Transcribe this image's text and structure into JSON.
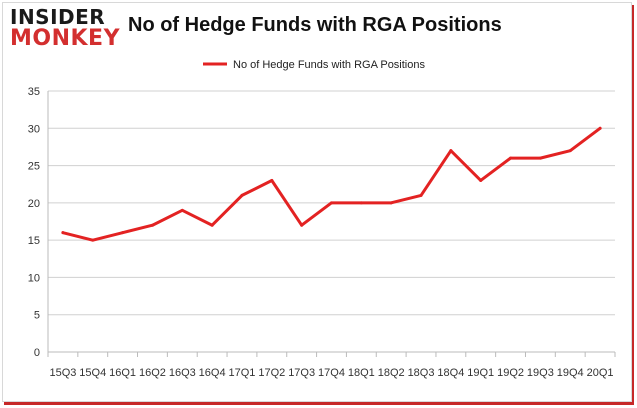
{
  "logo": {
    "top": "INSIDER",
    "bottom": "MONKEY"
  },
  "chart_data": {
    "type": "line",
    "title": "No of Hedge Funds with RGA Positions",
    "xlabel": "",
    "ylabel": "",
    "categories": [
      "15Q3",
      "15Q4",
      "16Q1",
      "16Q2",
      "16Q3",
      "16Q4",
      "17Q1",
      "17Q2",
      "17Q3",
      "17Q4",
      "18Q1",
      "18Q2",
      "18Q3",
      "18Q4",
      "19Q1",
      "19Q2",
      "19Q3",
      "19Q4",
      "20Q1"
    ],
    "series": [
      {
        "name": "No of Hedge Funds with RGA Positions",
        "values": [
          16,
          15,
          16,
          17,
          19,
          17,
          21,
          23,
          17,
          20,
          20,
          20,
          21,
          27,
          23,
          26,
          26,
          27,
          30
        ],
        "color": "#e32222"
      }
    ],
    "ylim": [
      0,
      35
    ],
    "yticks": [
      "0",
      "5",
      "10",
      "15",
      "20",
      "25",
      "30",
      "35"
    ],
    "grid": true,
    "legend": "top-center"
  }
}
